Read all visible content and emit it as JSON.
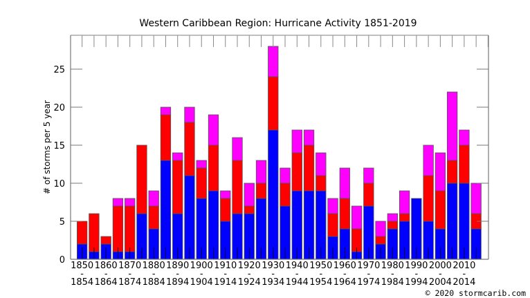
{
  "chart_data": {
    "type": "bar",
    "stacked": true,
    "title": "Western Caribbean Region: Hurricane Activity 1851-2019",
    "xlabel": "",
    "ylabel": "# of storms per 5 year",
    "ylim": [
      0,
      29.5
    ],
    "yticks": [
      0,
      5,
      10,
      15,
      20,
      25
    ],
    "grid": false,
    "legend": "none",
    "categories": [
      "1850-1854",
      "1855-1859",
      "1860-1864",
      "1865-1869",
      "1870-1874",
      "1875-1879",
      "1880-1884",
      "1885-1889",
      "1890-1894",
      "1895-1899",
      "1900-1904",
      "1905-1909",
      "1910-1914",
      "1915-1919",
      "1920-1924",
      "1925-1929",
      "1930-1934",
      "1935-1939",
      "1940-1944",
      "1945-1949",
      "1950-1954",
      "1955-1959",
      "1960-1964",
      "1965-1969",
      "1970-1974",
      "1975-1979",
      "1980-1984",
      "1985-1989",
      "1990-1994",
      "1995-1999",
      "2000-2004",
      "2005-2009",
      "2010-2014",
      "2015-2019"
    ],
    "xtick_labels": [
      {
        "start": "1850",
        "sep": "-",
        "end": "1854"
      },
      {
        "start": "1860",
        "sep": "-",
        "end": "1864"
      },
      {
        "start": "1870",
        "sep": "-",
        "end": "1874"
      },
      {
        "start": "1880",
        "sep": "-",
        "end": "1884"
      },
      {
        "start": "1890",
        "sep": "-",
        "end": "1894"
      },
      {
        "start": "1900",
        "sep": "-",
        "end": "1904"
      },
      {
        "start": "1910",
        "sep": "-",
        "end": "1914"
      },
      {
        "start": "1920",
        "sep": "-",
        "end": "1924"
      },
      {
        "start": "1930",
        "sep": "-",
        "end": "1934"
      },
      {
        "start": "1940",
        "sep": "-",
        "end": "1944"
      },
      {
        "start": "1950",
        "sep": "-",
        "end": "1954"
      },
      {
        "start": "1960",
        "sep": "-",
        "end": "1964"
      },
      {
        "start": "1970",
        "sep": "-",
        "end": "1974"
      },
      {
        "start": "1980",
        "sep": "-",
        "end": "1984"
      },
      {
        "start": "1990",
        "sep": "-",
        "end": "1994"
      },
      {
        "start": "2000",
        "sep": "-",
        "end": "2004"
      },
      {
        "start": "2010",
        "sep": "-",
        "end": "2014"
      }
    ],
    "series": [
      {
        "name": "blue",
        "color": "#0000ff",
        "values": [
          2,
          1,
          2,
          1,
          1,
          6,
          4,
          13,
          6,
          11,
          8,
          9,
          5,
          6,
          6,
          8,
          17,
          7,
          9,
          9,
          9,
          3,
          4,
          1,
          7,
          2,
          4,
          5,
          8,
          5,
          4,
          10,
          10,
          4
        ]
      },
      {
        "name": "red",
        "color": "#ff0000",
        "values": [
          3,
          5,
          1,
          6,
          6,
          9,
          3,
          6,
          7,
          7,
          4,
          6,
          3,
          7,
          1,
          2,
          7,
          3,
          5,
          6,
          2,
          3,
          4,
          3,
          3,
          1,
          1,
          1,
          0,
          6,
          5,
          3,
          5,
          2
        ]
      },
      {
        "name": "magenta",
        "color": "#ff00ff",
        "values": [
          0,
          0,
          0,
          1,
          1,
          0,
          2,
          1,
          1,
          2,
          1,
          4,
          1,
          3,
          3,
          3,
          4,
          2,
          3,
          2,
          3,
          2,
          4,
          3,
          2,
          2,
          1,
          3,
          0,
          4,
          5,
          9,
          2,
          4
        ]
      }
    ],
    "cumulative_tops": [
      5,
      6,
      3,
      8,
      8,
      15,
      9,
      20,
      14,
      20,
      13,
      19,
      9,
      16,
      10,
      13,
      28,
      12,
      17,
      17,
      14,
      8,
      12,
      7,
      12,
      5,
      6,
      9,
      8,
      15,
      14,
      22,
      17,
      10
    ]
  },
  "credit": "© 2020 stormcarib.com"
}
